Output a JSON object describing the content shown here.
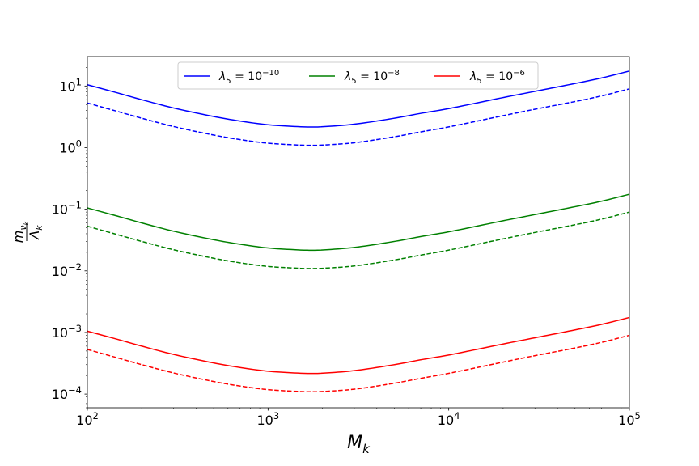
{
  "chart_data": {
    "type": "line",
    "title": "",
    "xlabel": "M",
    "xlabel_sub": "k",
    "ylabel_num": "m",
    "ylabel_num_sub": "ν",
    "ylabel_num_subsub": "k",
    "ylabel_den": "Λ",
    "ylabel_den_sub": "k",
    "xscale": "log",
    "yscale": "log",
    "xlim": [
      100,
      100000
    ],
    "ylim": [
      6e-05,
      30
    ],
    "grid": false,
    "legend_position": "top-center",
    "x_ticks": [
      {
        "base": "10",
        "exp": "2",
        "value": 100
      },
      {
        "base": "10",
        "exp": "3",
        "value": 1000
      },
      {
        "base": "10",
        "exp": "4",
        "value": 10000
      },
      {
        "base": "10",
        "exp": "5",
        "value": 100000
      }
    ],
    "y_ticks": [
      {
        "base": "10",
        "exp": "−4",
        "value": 0.0001
      },
      {
        "base": "10",
        "exp": "−3",
        "value": 0.001
      },
      {
        "base": "10",
        "exp": "−2",
        "value": 0.01
      },
      {
        "base": "10",
        "exp": "−1",
        "value": 0.1
      },
      {
        "base": "10",
        "exp": "0",
        "value": 1
      },
      {
        "base": "10",
        "exp": "1",
        "value": 10
      }
    ],
    "x": [
      100,
      150,
      200,
      300,
      500,
      700,
      1000,
      1500,
      1700,
      2000,
      3000,
      5000,
      7000,
      10000,
      20000,
      30000,
      50000,
      70000,
      100000
    ],
    "series": [
      {
        "name_prefix": "λ",
        "name_sub": "5",
        "name_mid": " = 10",
        "name_exp": "−10",
        "color": "#0000ff",
        "style": "solid",
        "values": [
          10.5,
          7.6,
          6.0,
          4.4,
          3.2,
          2.7,
          2.35,
          2.18,
          2.16,
          2.18,
          2.4,
          3.0,
          3.6,
          4.3,
          6.5,
          8.2,
          11.0,
          13.5,
          17.5
        ]
      },
      {
        "name": "",
        "color": "#0000ff",
        "style": "dashed",
        "values": [
          5.3,
          3.8,
          3.0,
          2.2,
          1.6,
          1.35,
          1.18,
          1.1,
          1.09,
          1.1,
          1.2,
          1.5,
          1.8,
          2.17,
          3.3,
          4.2,
          5.6,
          6.9,
          9.0
        ]
      },
      {
        "name_prefix": "λ",
        "name_sub": "5",
        "name_mid": " = 10",
        "name_exp": "−8",
        "color": "#008000",
        "style": "solid",
        "values": [
          0.105,
          0.076,
          0.06,
          0.044,
          0.032,
          0.027,
          0.0235,
          0.0218,
          0.0216,
          0.0218,
          0.024,
          0.03,
          0.036,
          0.043,
          0.065,
          0.082,
          0.11,
          0.135,
          0.175
        ]
      },
      {
        "name": "",
        "color": "#008000",
        "style": "dashed",
        "values": [
          0.053,
          0.038,
          0.03,
          0.022,
          0.016,
          0.0135,
          0.0118,
          0.011,
          0.0109,
          0.011,
          0.012,
          0.015,
          0.018,
          0.0217,
          0.033,
          0.042,
          0.056,
          0.069,
          0.09
        ]
      },
      {
        "name_prefix": "λ",
        "name_sub": "5",
        "name_mid": " = 10",
        "name_exp": "−6",
        "color": "#ff0000",
        "style": "solid",
        "values": [
          0.00105,
          0.00076,
          0.0006,
          0.00044,
          0.00032,
          0.00027,
          0.000235,
          0.000218,
          0.000216,
          0.000218,
          0.00024,
          0.0003,
          0.00036,
          0.00043,
          0.00065,
          0.00082,
          0.0011,
          0.00135,
          0.00175
        ]
      },
      {
        "name": "",
        "color": "#ff0000",
        "style": "dashed",
        "values": [
          0.00053,
          0.00038,
          0.0003,
          0.00022,
          0.00016,
          0.000135,
          0.000118,
          0.00011,
          0.000109,
          0.00011,
          0.00012,
          0.00015,
          0.00018,
          0.000217,
          0.00033,
          0.00042,
          0.00056,
          0.00069,
          0.0009
        ]
      }
    ]
  }
}
